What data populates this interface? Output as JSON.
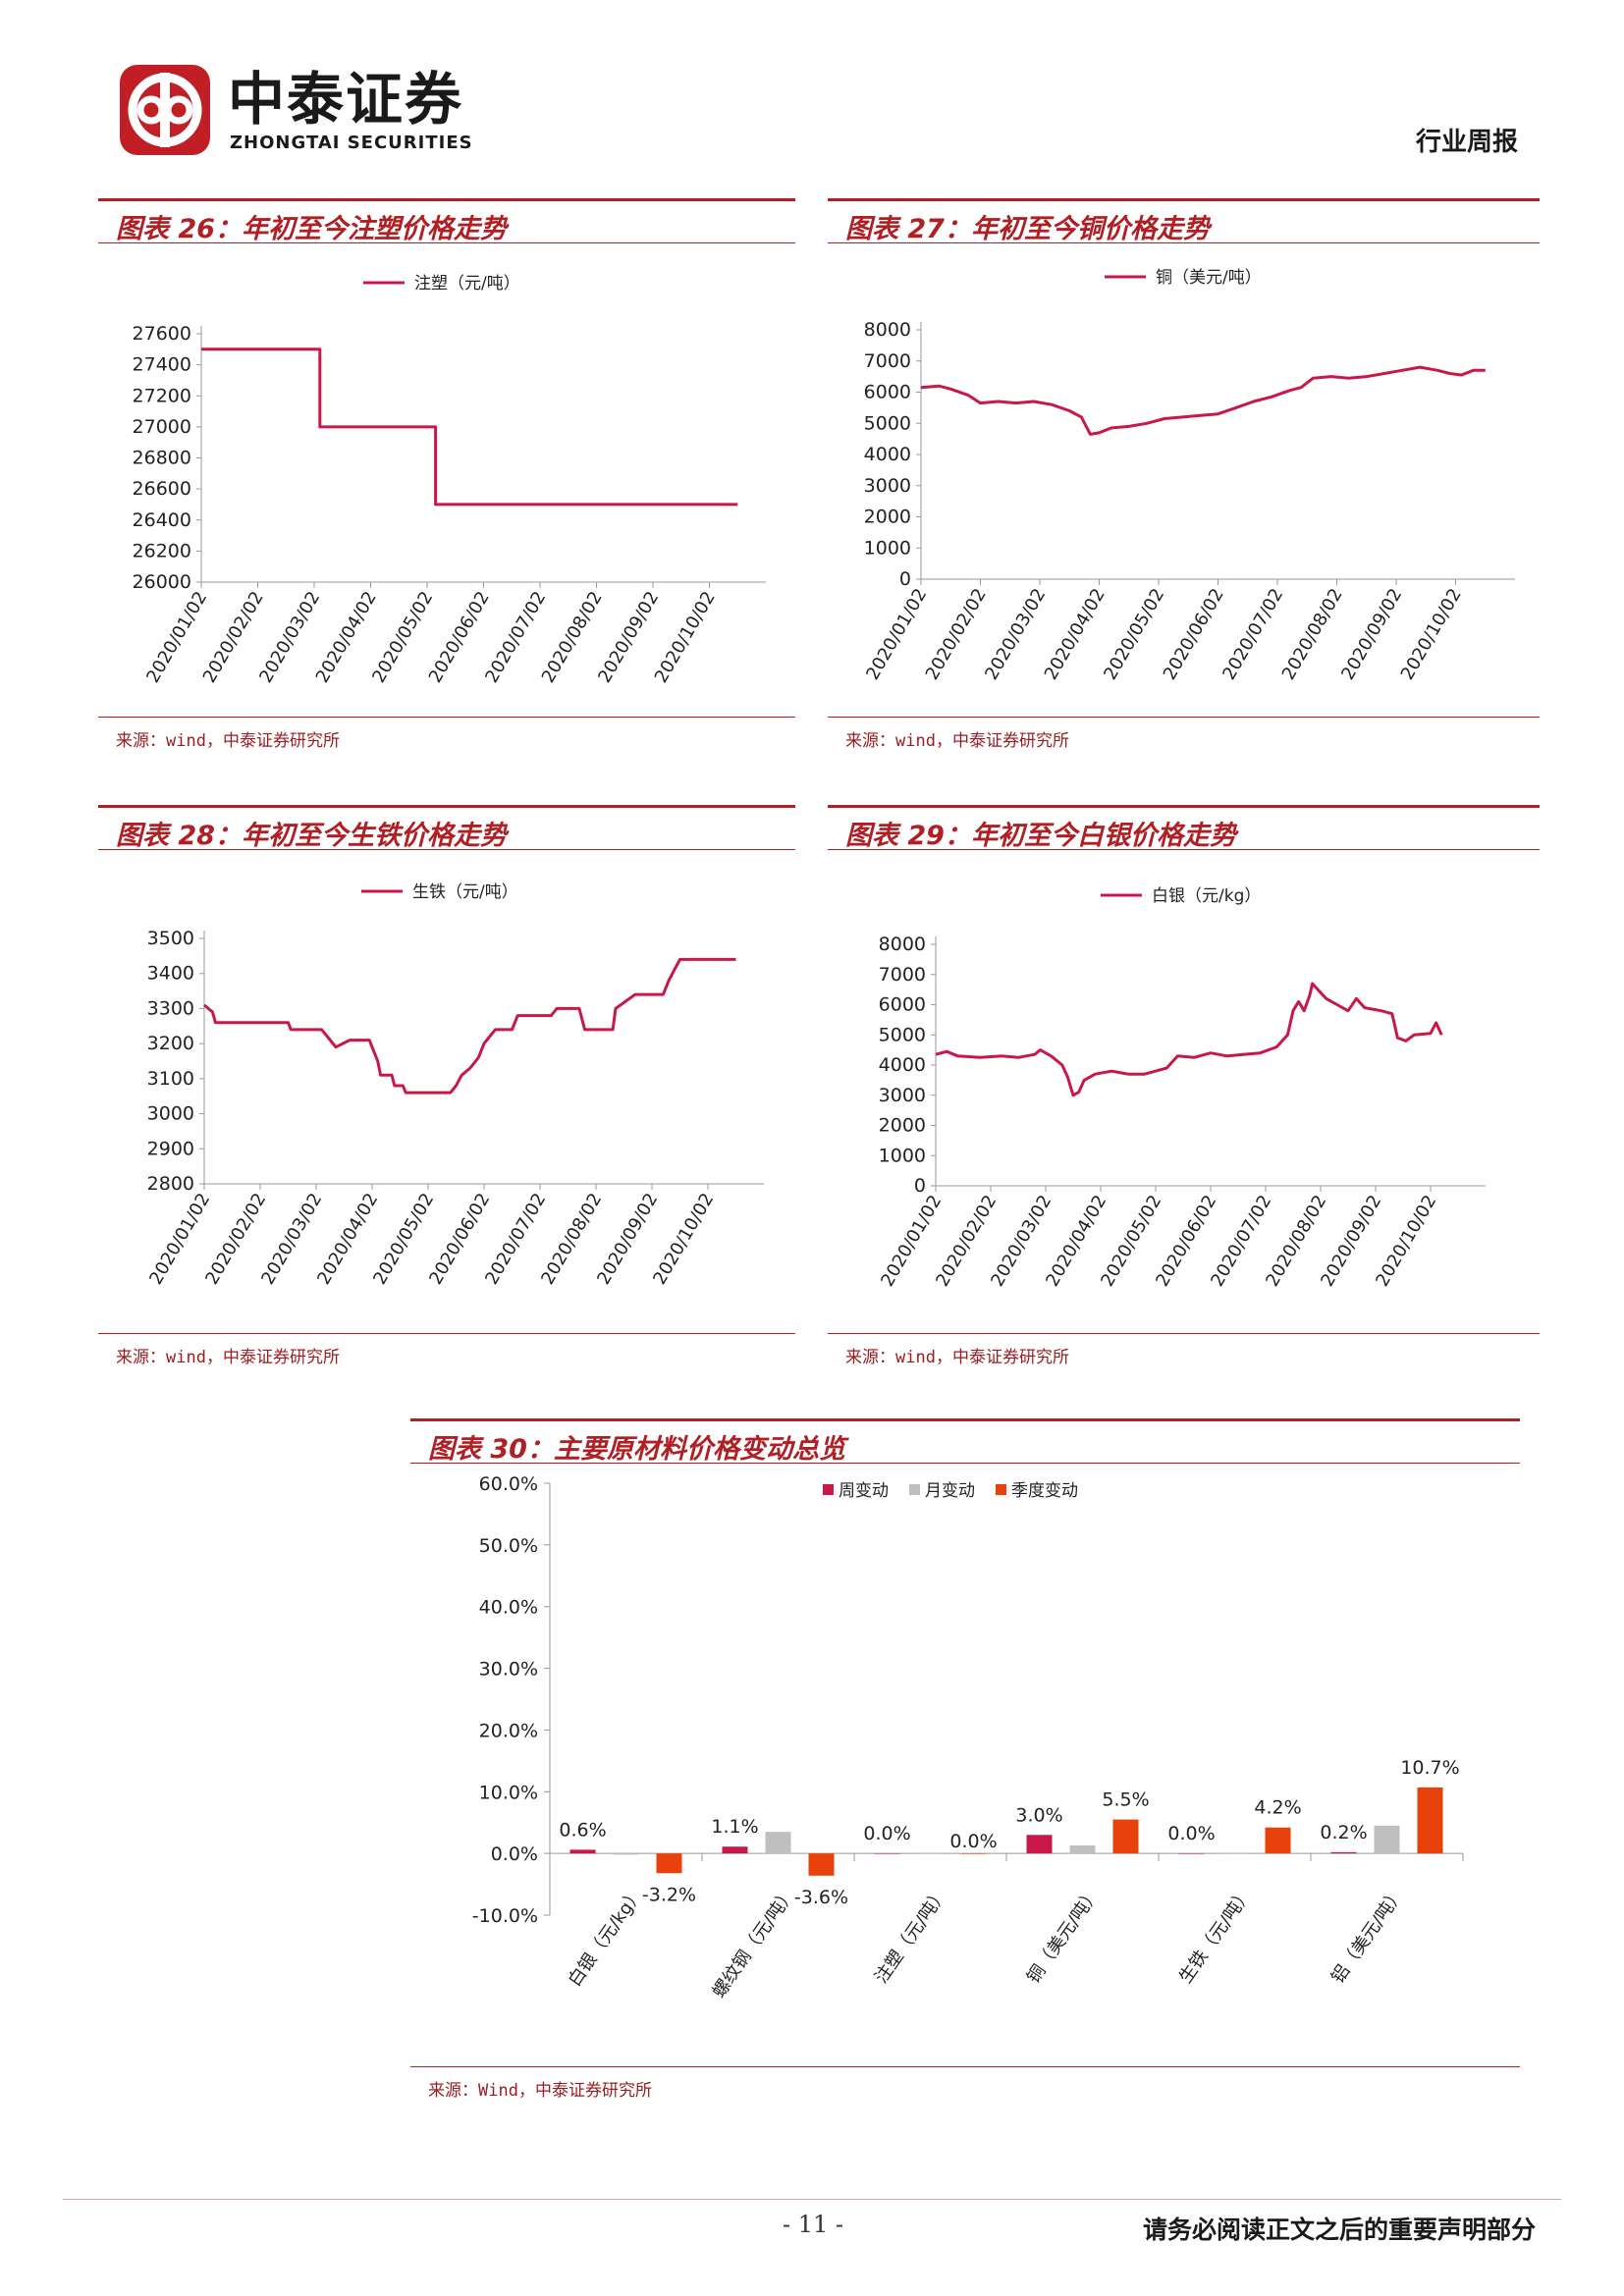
{
  "header": {
    "brand_cn": "中泰证券",
    "brand_en": "ZHONGTAI SECURITIES",
    "report_type": "行业周报"
  },
  "footer": {
    "page_number": "- 11 -",
    "disclaimer": "请务必阅读正文之后的重要声明部分"
  },
  "colors": {
    "accent": "#b01f24",
    "line": "#c8184a",
    "gray": "#bfbfbf",
    "orange": "#e8410c"
  },
  "chart_data": [
    {
      "id": "fig26",
      "type": "line",
      "title": "图表 26：年初至今注塑价格走势",
      "legend": "注塑（元/吨）",
      "source": "来源：wind，中泰证券研究所",
      "x_ticks": [
        "2020/01/02",
        "2020/02/02",
        "2020/03/02",
        "2020/04/02",
        "2020/05/02",
        "2020/06/02",
        "2020/07/02",
        "2020/08/02",
        "2020/09/02",
        "2020/10/02"
      ],
      "ylim": [
        26000,
        27600
      ],
      "y_ticks": [
        26000,
        26200,
        26400,
        26600,
        26800,
        27000,
        27200,
        27400,
        27600
      ],
      "points": [
        [
          0,
          27500
        ],
        [
          2.1,
          27500
        ],
        [
          2.1,
          27000
        ],
        [
          4.15,
          27000
        ],
        [
          4.15,
          26500
        ],
        [
          9.5,
          26500
        ]
      ]
    },
    {
      "id": "fig27",
      "type": "line",
      "title": "图表 27：年初至今铜价格走势",
      "legend": "铜（美元/吨）",
      "source": "来源：wind，中泰证券研究所",
      "x_ticks": [
        "2020/01/02",
        "2020/02/02",
        "2020/03/02",
        "2020/04/02",
        "2020/05/02",
        "2020/06/02",
        "2020/07/02",
        "2020/08/02",
        "2020/09/02",
        "2020/10/02"
      ],
      "ylim": [
        0,
        8000
      ],
      "y_ticks": [
        0,
        1000,
        2000,
        3000,
        4000,
        5000,
        6000,
        7000,
        8000
      ],
      "points": [
        [
          0,
          6150
        ],
        [
          0.3,
          6200
        ],
        [
          0.5,
          6100
        ],
        [
          0.8,
          5900
        ],
        [
          1.0,
          5650
        ],
        [
          1.3,
          5700
        ],
        [
          1.6,
          5650
        ],
        [
          1.9,
          5700
        ],
        [
          2.2,
          5600
        ],
        [
          2.5,
          5400
        ],
        [
          2.7,
          5200
        ],
        [
          2.85,
          4650
        ],
        [
          3.0,
          4700
        ],
        [
          3.2,
          4850
        ],
        [
          3.5,
          4900
        ],
        [
          3.8,
          5000
        ],
        [
          4.1,
          5150
        ],
        [
          4.4,
          5200
        ],
        [
          4.7,
          5250
        ],
        [
          5.0,
          5300
        ],
        [
          5.3,
          5500
        ],
        [
          5.6,
          5700
        ],
        [
          5.9,
          5850
        ],
        [
          6.2,
          6050
        ],
        [
          6.4,
          6150
        ],
        [
          6.6,
          6450
        ],
        [
          6.9,
          6500
        ],
        [
          7.2,
          6450
        ],
        [
          7.5,
          6500
        ],
        [
          7.8,
          6600
        ],
        [
          8.1,
          6700
        ],
        [
          8.4,
          6800
        ],
        [
          8.7,
          6700
        ],
        [
          8.9,
          6600
        ],
        [
          9.1,
          6550
        ],
        [
          9.3,
          6700
        ],
        [
          9.5,
          6700
        ]
      ]
    },
    {
      "id": "fig28",
      "type": "line",
      "title": "图表 28：年初至今生铁价格走势",
      "legend": "生铁（元/吨）",
      "source": "来源：wind，中泰证券研究所",
      "x_ticks": [
        "2020/01/02",
        "2020/02/02",
        "2020/03/02",
        "2020/04/02",
        "2020/05/02",
        "2020/06/02",
        "2020/07/02",
        "2020/08/02",
        "2020/09/02",
        "2020/10/02"
      ],
      "ylim": [
        2800,
        3500
      ],
      "y_ticks": [
        2800,
        2900,
        3000,
        3100,
        3200,
        3300,
        3400,
        3500
      ],
      "points": [
        [
          0,
          3310
        ],
        [
          0.15,
          3290
        ],
        [
          0.2,
          3260
        ],
        [
          1.5,
          3260
        ],
        [
          1.55,
          3240
        ],
        [
          2.1,
          3240
        ],
        [
          2.2,
          3220
        ],
        [
          2.35,
          3190
        ],
        [
          2.6,
          3210
        ],
        [
          2.95,
          3210
        ],
        [
          3.1,
          3150
        ],
        [
          3.15,
          3110
        ],
        [
          3.35,
          3110
        ],
        [
          3.4,
          3080
        ],
        [
          3.55,
          3080
        ],
        [
          3.6,
          3060
        ],
        [
          4.4,
          3060
        ],
        [
          4.5,
          3080
        ],
        [
          4.6,
          3110
        ],
        [
          4.75,
          3130
        ],
        [
          4.9,
          3160
        ],
        [
          5.0,
          3200
        ],
        [
          5.1,
          3220
        ],
        [
          5.2,
          3240
        ],
        [
          5.5,
          3240
        ],
        [
          5.6,
          3280
        ],
        [
          6.2,
          3280
        ],
        [
          6.3,
          3300
        ],
        [
          6.7,
          3300
        ],
        [
          6.8,
          3240
        ],
        [
          7.3,
          3240
        ],
        [
          7.35,
          3300
        ],
        [
          7.7,
          3340
        ],
        [
          8.2,
          3340
        ],
        [
          8.3,
          3380
        ],
        [
          8.4,
          3410
        ],
        [
          8.5,
          3440
        ],
        [
          9.5,
          3440
        ]
      ]
    },
    {
      "id": "fig29",
      "type": "line",
      "title": "图表 29：年初至今白银价格走势",
      "legend": "白银（元/kg）",
      "source": "来源：wind，中泰证券研究所",
      "x_ticks": [
        "2020/01/02",
        "2020/02/02",
        "2020/03/02",
        "2020/04/02",
        "2020/05/02",
        "2020/06/02",
        "2020/07/02",
        "2020/08/02",
        "2020/09/02",
        "2020/10/02"
      ],
      "ylim": [
        0,
        8000
      ],
      "y_ticks": [
        0,
        1000,
        2000,
        3000,
        4000,
        5000,
        6000,
        7000,
        8000
      ],
      "points": [
        [
          0,
          4350
        ],
        [
          0.2,
          4450
        ],
        [
          0.4,
          4300
        ],
        [
          0.8,
          4250
        ],
        [
          1.2,
          4300
        ],
        [
          1.5,
          4250
        ],
        [
          1.8,
          4350
        ],
        [
          1.9,
          4500
        ],
        [
          2.1,
          4300
        ],
        [
          2.3,
          4000
        ],
        [
          2.4,
          3600
        ],
        [
          2.5,
          3000
        ],
        [
          2.6,
          3100
        ],
        [
          2.7,
          3500
        ],
        [
          2.9,
          3700
        ],
        [
          3.2,
          3800
        ],
        [
          3.5,
          3700
        ],
        [
          3.8,
          3700
        ],
        [
          4.2,
          3900
        ],
        [
          4.4,
          4300
        ],
        [
          4.7,
          4250
        ],
        [
          5.0,
          4400
        ],
        [
          5.3,
          4300
        ],
        [
          5.6,
          4350
        ],
        [
          5.9,
          4400
        ],
        [
          6.2,
          4600
        ],
        [
          6.4,
          5000
        ],
        [
          6.5,
          5800
        ],
        [
          6.6,
          6100
        ],
        [
          6.7,
          5800
        ],
        [
          6.8,
          6300
        ],
        [
          6.85,
          6700
        ],
        [
          6.95,
          6500
        ],
        [
          7.1,
          6200
        ],
        [
          7.3,
          6000
        ],
        [
          7.5,
          5800
        ],
        [
          7.65,
          6200
        ],
        [
          7.8,
          5900
        ],
        [
          8.1,
          5800
        ],
        [
          8.3,
          5700
        ],
        [
          8.4,
          4900
        ],
        [
          8.55,
          4800
        ],
        [
          8.7,
          5000
        ],
        [
          9.0,
          5050
        ],
        [
          9.1,
          5400
        ],
        [
          9.2,
          5000
        ]
      ]
    },
    {
      "id": "fig30",
      "type": "bar",
      "title": "图表 30：主要原材料价格变动总览",
      "source": "来源：Wind，中泰证券研究所",
      "categories": [
        "白银（元/kg）",
        "螺纹钢（元/吨）",
        "注塑（元/吨）",
        "铜（美元/吨）",
        "生铁（元/吨）",
        "铝（美元/吨）"
      ],
      "ylim": [
        -10,
        60
      ],
      "y_ticks": [
        -10,
        0,
        10,
        20,
        30,
        40,
        50,
        60
      ],
      "y_tick_labels": [
        "-10.0%",
        "0.0%",
        "10.0%",
        "20.0%",
        "30.0%",
        "40.0%",
        "50.0%",
        "60.0%"
      ],
      "series": [
        {
          "name": "周变动",
          "values": [
            0.6,
            1.1,
            0.0,
            3.0,
            0.0,
            0.2
          ]
        },
        {
          "name": "月变动",
          "values": [
            -0.2,
            3.5,
            0.0,
            1.3,
            0.0,
            4.5
          ]
        },
        {
          "name": "季度变动",
          "values": [
            -3.2,
            -3.6,
            0.0,
            5.5,
            4.2,
            10.7
          ]
        }
      ],
      "data_labels": [
        {
          "category": 0,
          "value": 0.6,
          "text": "0.6%"
        },
        {
          "category": 0,
          "value": -3.2,
          "text": "-3.2%"
        },
        {
          "category": 1,
          "value": 1.1,
          "text": "1.1%"
        },
        {
          "category": 1,
          "value": -3.6,
          "text": "-3.6%"
        },
        {
          "category": 2,
          "value": 0.0,
          "text": "0.0%"
        },
        {
          "category": 2,
          "value": 0.0,
          "text": "0.0%"
        },
        {
          "category": 3,
          "value": 3.0,
          "text": "3.0%"
        },
        {
          "category": 3,
          "value": 5.5,
          "text": "5.5%"
        },
        {
          "category": 4,
          "value": 0.0,
          "text": "0.0%"
        },
        {
          "category": 4,
          "value": 4.2,
          "text": "4.2%"
        },
        {
          "category": 5,
          "value": 0.2,
          "text": "0.2%"
        },
        {
          "category": 5,
          "value": 10.7,
          "text": "10.7%"
        }
      ],
      "legend_position": "top-center"
    }
  ]
}
